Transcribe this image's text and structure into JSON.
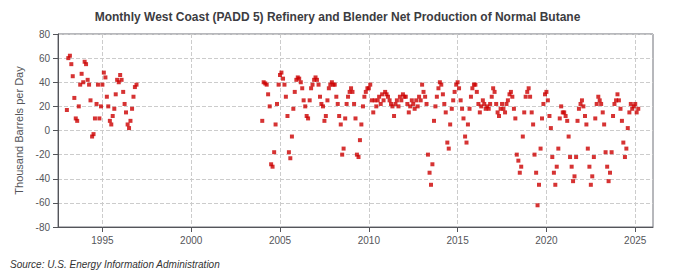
{
  "chart_data": {
    "type": "scatter",
    "title": "Monthly West Coast (PADD 5) Refinery and Blender Net Production of Normal Butane",
    "ylabel": "Thousand Barrels per Day",
    "annotation": "Source: U.S. Energy Information Administration",
    "color": "#CC0000",
    "marker": "square",
    "grid": true,
    "ylim": [
      -80,
      80
    ],
    "yticks": [
      -80,
      -60,
      -40,
      -20,
      0,
      20,
      40,
      60,
      80
    ],
    "xlim": [
      1992.5,
      2026.0
    ],
    "xticks": [
      1995,
      2000,
      2005,
      2010,
      2015,
      2020,
      2025
    ],
    "series": [
      {
        "x": [
          1993.0,
          1993.08,
          1993.17,
          1993.25,
          1993.33,
          1993.42,
          1993.5,
          1993.58,
          1993.67,
          1993.75,
          1993.83,
          1993.92,
          1994.0,
          1994.08,
          1994.17,
          1994.25,
          1994.33,
          1994.42,
          1994.5,
          1994.58,
          1994.67,
          1994.75,
          1994.83,
          1994.92,
          1995.0,
          1995.08,
          1995.17,
          1995.25,
          1995.33,
          1995.42,
          1995.5,
          1995.58,
          1995.67,
          1995.75,
          1995.83,
          1995.92,
          1996.0,
          1996.08,
          1996.17,
          1996.25,
          1996.33,
          1996.42,
          1996.5,
          1996.58,
          1996.67,
          1996.75,
          1996.83,
          1996.92
        ],
        "values": [
          17,
          60,
          62,
          55,
          45,
          27,
          10,
          8,
          20,
          38,
          47,
          40,
          57,
          55,
          42,
          38,
          25,
          -5,
          -3,
          10,
          22,
          38,
          10,
          20,
          38,
          48,
          44,
          28,
          20,
          8,
          5,
          12,
          18,
          30,
          42,
          40,
          46,
          42,
          32,
          22,
          15,
          5,
          2,
          8,
          18,
          28,
          36,
          38
        ]
      },
      {
        "x": [
          2004.0,
          2004.08,
          2004.17,
          2004.25,
          2004.33,
          2004.42,
          2004.5,
          2004.58,
          2004.67,
          2004.75,
          2004.83,
          2004.92,
          2005.0,
          2005.08,
          2005.17,
          2005.25,
          2005.33,
          2005.42,
          2005.5,
          2005.58,
          2005.67,
          2005.75,
          2005.83,
          2005.92,
          2006.0,
          2006.08,
          2006.17,
          2006.25,
          2006.33,
          2006.42,
          2006.5,
          2006.58,
          2006.67,
          2006.75,
          2006.83,
          2006.92,
          2007.0,
          2007.08,
          2007.17,
          2007.25,
          2007.33,
          2007.42,
          2007.5,
          2007.58,
          2007.67,
          2007.75,
          2007.83,
          2007.92,
          2008.0,
          2008.08,
          2008.17,
          2008.25,
          2008.33,
          2008.42,
          2008.5,
          2008.58,
          2008.67,
          2008.75,
          2008.83,
          2008.92,
          2009.0,
          2009.08,
          2009.17,
          2009.25,
          2009.33,
          2009.42,
          2009.5,
          2009.58,
          2009.67,
          2009.75,
          2009.83,
          2009.92,
          2010.0,
          2010.08,
          2010.17,
          2010.25,
          2010.33,
          2010.42,
          2010.5,
          2010.58,
          2010.67,
          2010.75,
          2010.83,
          2010.92,
          2011.0,
          2011.08,
          2011.17,
          2011.25,
          2011.33,
          2011.42,
          2011.5,
          2011.58,
          2011.67,
          2011.75,
          2011.83,
          2011.92,
          2012.0,
          2012.08,
          2012.17,
          2012.25,
          2012.33,
          2012.42,
          2012.5,
          2012.58,
          2012.67,
          2012.75,
          2012.83,
          2012.92,
          2013.0,
          2013.08,
          2013.17,
          2013.25,
          2013.33,
          2013.42,
          2013.5,
          2013.58,
          2013.67,
          2013.75,
          2013.83,
          2013.92,
          2014.0,
          2014.08,
          2014.17,
          2014.25,
          2014.33,
          2014.42,
          2014.5,
          2014.58,
          2014.67,
          2014.75,
          2014.83,
          2014.92,
          2015.0,
          2015.08,
          2015.17,
          2015.25,
          2015.33,
          2015.42,
          2015.5,
          2015.58,
          2015.67,
          2015.75,
          2015.83,
          2015.92,
          2016.0,
          2016.08,
          2016.17,
          2016.25,
          2016.33,
          2016.42,
          2016.5,
          2016.58,
          2016.67,
          2016.75,
          2016.83,
          2016.92,
          2017.0,
          2017.08,
          2017.17,
          2017.25,
          2017.33,
          2017.42,
          2017.5,
          2017.58,
          2017.67,
          2017.75,
          2017.83,
          2017.92,
          2018.0,
          2018.08,
          2018.17,
          2018.25,
          2018.33,
          2018.42,
          2018.5,
          2018.58,
          2018.67,
          2018.75,
          2018.83,
          2018.92,
          2019.0,
          2019.08,
          2019.17,
          2019.25,
          2019.33,
          2019.42,
          2019.5,
          2019.58,
          2019.67,
          2019.75,
          2019.83,
          2019.92,
          2020.0,
          2020.08,
          2020.17,
          2020.25,
          2020.33,
          2020.42,
          2020.5,
          2020.58,
          2020.67,
          2020.75,
          2020.83,
          2020.92,
          2021.0,
          2021.08,
          2021.17,
          2021.25,
          2021.33,
          2021.42,
          2021.5,
          2021.58,
          2021.67,
          2021.75,
          2021.83,
          2021.92,
          2022.0,
          2022.08,
          2022.17,
          2022.25,
          2022.33,
          2022.42,
          2022.5,
          2022.58,
          2022.67,
          2022.75,
          2022.83,
          2022.92,
          2023.0,
          2023.08,
          2023.17,
          2023.25,
          2023.33,
          2023.42,
          2023.5,
          2023.58,
          2023.67,
          2023.75,
          2023.83,
          2023.92,
          2024.0,
          2024.08,
          2024.17,
          2024.25,
          2024.33,
          2024.42,
          2024.5,
          2024.58,
          2024.67,
          2024.75,
          2024.83,
          2024.92,
          2025.0,
          2025.08,
          2025.17
        ],
        "values": [
          8,
          40,
          39,
          38,
          30,
          20,
          -28,
          -30,
          -18,
          5,
          22,
          38,
          46,
          48,
          43,
          38,
          28,
          12,
          -18,
          -23,
          -5,
          18,
          32,
          42,
          44,
          43,
          40,
          35,
          25,
          20,
          12,
          10,
          25,
          35,
          38,
          42,
          44,
          42,
          38,
          28,
          22,
          20,
          8,
          12,
          25,
          35,
          38,
          40,
          38,
          38,
          28,
          22,
          12,
          5,
          -20,
          -15,
          10,
          22,
          28,
          32,
          35,
          32,
          22,
          10,
          -20,
          -22,
          -8,
          5,
          20,
          28,
          32,
          35,
          35,
          38,
          25,
          15,
          25,
          20,
          25,
          28,
          22,
          30,
          25,
          32,
          30,
          28,
          25,
          22,
          20,
          12,
          22,
          25,
          20,
          28,
          25,
          30,
          28,
          28,
          22,
          15,
          20,
          25,
          22,
          18,
          25,
          20,
          28,
          25,
          38,
          32,
          28,
          22,
          -20,
          -35,
          -45,
          -28,
          8,
          20,
          28,
          35,
          40,
          38,
          30,
          22,
          15,
          -10,
          -15,
          5,
          18,
          25,
          32,
          38,
          40,
          35,
          25,
          18,
          10,
          -5,
          -10,
          5,
          18,
          28,
          35,
          38,
          38,
          32,
          22,
          15,
          20,
          25,
          22,
          18,
          20,
          18,
          22,
          28,
          35,
          32,
          22,
          15,
          12,
          18,
          22,
          18,
          15,
          22,
          25,
          30,
          32,
          28,
          18,
          10,
          -20,
          -25,
          -35,
          -30,
          -5,
          15,
          28,
          32,
          35,
          28,
          15,
          5,
          -20,
          -35,
          -62,
          -45,
          -15,
          10,
          22,
          30,
          32,
          25,
          12,
          2,
          -22,
          -35,
          -45,
          -30,
          -15,
          10,
          20,
          15,
          15,
          12,
          8,
          -5,
          -22,
          -30,
          -42,
          -38,
          -22,
          8,
          18,
          22,
          25,
          20,
          12,
          5,
          -15,
          -30,
          -45,
          -38,
          -22,
          10,
          22,
          28,
          25,
          22,
          15,
          5,
          -18,
          -30,
          -42,
          -35,
          -18,
          12,
          22,
          25,
          30,
          25,
          18,
          8,
          -10,
          -22,
          -15,
          2,
          15,
          22,
          18,
          20,
          22,
          15,
          18
        ]
      }
    ]
  }
}
